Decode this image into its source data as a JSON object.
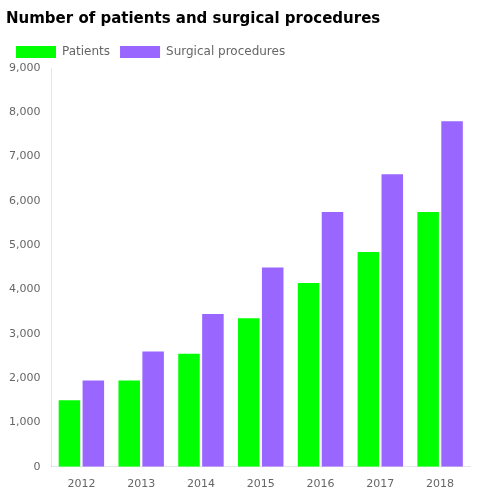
{
  "chart_data": {
    "type": "bar",
    "title": "Number of patients and surgical procedures",
    "categories": [
      "2012",
      "2013",
      "2014",
      "2015",
      "2016",
      "2017",
      "2018"
    ],
    "series": [
      {
        "name": "Patients",
        "color": "#00FF00",
        "values": [
          1500,
          1950,
          2550,
          3350,
          4150,
          4850,
          5750
        ]
      },
      {
        "name": "Surgical procedures",
        "color": "#9966FF",
        "values": [
          1950,
          2600,
          3450,
          4500,
          5750,
          6600,
          7800
        ]
      }
    ],
    "ylim": [
      0,
      9000
    ],
    "yticks": [
      0,
      {
        "value": 1000,
        "label": "1,000"
      },
      {
        "value": 2000,
        "label": "2,000"
      },
      {
        "value": 3000,
        "label": "3,000"
      },
      {
        "value": 4000,
        "label": "4,000"
      },
      {
        "value": 5000,
        "label": "5,000"
      },
      {
        "value": 6000,
        "label": "6,000"
      },
      {
        "value": 7000,
        "label": "7,000"
      },
      {
        "value": 8000,
        "label": "8,000"
      },
      {
        "value": 9000,
        "label": "9,000"
      }
    ],
    "grid": false,
    "legend": "upper left"
  }
}
